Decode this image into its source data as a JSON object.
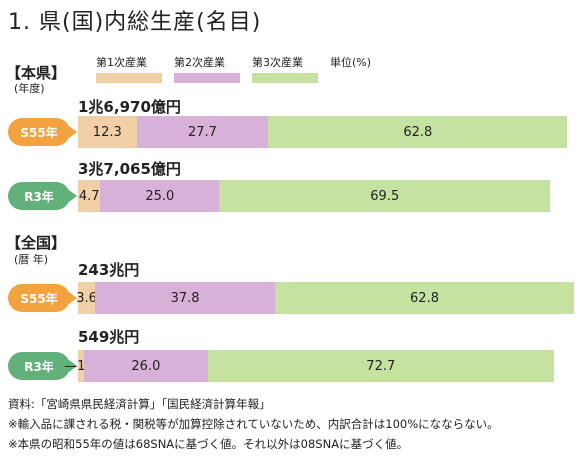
{
  "title": "1. 県(国)内総生産(名目)",
  "legend": {
    "items": [
      "第1次産業",
      "第2次産業",
      "第3次産業"
    ],
    "unit": "単位(%)"
  },
  "colors": {
    "primary": "#f1cfa7",
    "secondary": "#d8b1d8",
    "tertiary": "#c6e2a0",
    "pill_s55": "#f2a23e",
    "pill_r3": "#62b07a"
  },
  "sections": [
    {
      "label": "【本県】",
      "sub": "(年度)",
      "rows": [
        {
          "year": "S55年",
          "total": "1兆6,970億円"
        },
        {
          "year": "R3年",
          "total": "3兆7,065億円"
        }
      ]
    },
    {
      "label": "【全国】",
      "sub": "(暦 年)",
      "rows": [
        {
          "year": "S55年",
          "total": "243兆円"
        },
        {
          "year": "R3年",
          "total": "549兆円"
        }
      ]
    }
  ],
  "chart_data": {
    "type": "bar",
    "orientation": "horizontal-stacked",
    "series_names": [
      "第1次産業",
      "第2次産業",
      "第3次産業"
    ],
    "bars": [
      {
        "group": "本県",
        "year": "S55年",
        "values": [
          12.3,
          27.7,
          62.8
        ],
        "labels": [
          "12.3",
          "27.7",
          "62.8"
        ]
      },
      {
        "group": "本県",
        "year": "R3年",
        "values": [
          4.7,
          25.0,
          69.5
        ],
        "labels": [
          "4.7",
          "25.0",
          "69.5"
        ]
      },
      {
        "group": "全国",
        "year": "S55年",
        "values": [
          3.6,
          37.8,
          62.8
        ],
        "labels": [
          "3.6",
          "37.8",
          "62.8"
        ]
      },
      {
        "group": "全国",
        "year": "R3年",
        "values": [
          1.0,
          26.0,
          72.7
        ],
        "labels": [
          "—1.0",
          "26.0",
          "72.7"
        ]
      }
    ],
    "bar_scale_max": [
      103,
      99,
      104,
      99
    ]
  },
  "notes": [
    "資料:「宮崎県県民経済計算」「国民経済計算年報」",
    "※輸入品に課される税・関税等が加算控除されていないため、内訳合計は100%になならない。",
    "※本県の昭和55年の値は68SNAに基づく値。それ以外は08SNAに基づく値。"
  ]
}
